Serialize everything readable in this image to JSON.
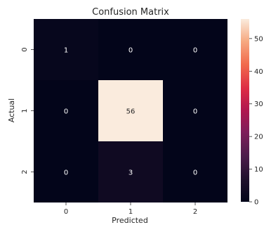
{
  "chart_data": {
    "type": "heatmap",
    "title": "Confusion Matrix",
    "xlabel": "Predicted",
    "ylabel": "Actual",
    "x_categories": [
      "0",
      "1",
      "2"
    ],
    "y_categories": [
      "0",
      "1",
      "2"
    ],
    "values": [
      [
        1,
        0,
        0
      ],
      [
        0,
        56,
        0
      ],
      [
        0,
        3,
        0
      ]
    ],
    "colorbar": {
      "min": 0,
      "max": 56,
      "ticks": [
        0,
        10,
        20,
        30,
        40,
        50
      ],
      "colormap": "rocket",
      "low_color": "#03051a",
      "high_color": "#faebdd"
    },
    "annotations": true
  }
}
